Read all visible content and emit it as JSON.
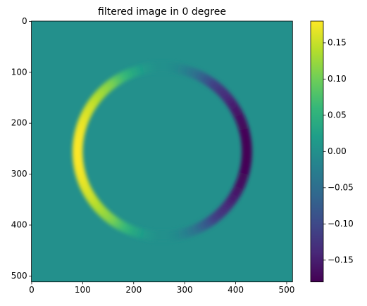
{
  "chart_data": {
    "type": "image",
    "title": "filtered image in 0 degree",
    "xlim": [
      -0.5,
      511.5
    ],
    "ylim": [
      511.5,
      -0.5
    ],
    "xticks": [
      0,
      100,
      200,
      300,
      400,
      500
    ],
    "yticks": [
      0,
      100,
      200,
      300,
      400,
      500
    ],
    "colormap": "viridis",
    "clim": [
      -0.18,
      0.18
    ],
    "colorbar_ticks": [
      {
        "value": -0.15,
        "label": "−0.15"
      },
      {
        "value": -0.1,
        "label": "−0.10"
      },
      {
        "value": -0.05,
        "label": "−0.05"
      },
      {
        "value": 0,
        "label": "0.00"
      },
      {
        "value": 0.05,
        "label": "0.05"
      },
      {
        "value": 0.1,
        "label": "0.10"
      },
      {
        "value": 0.15,
        "label": "0.15"
      }
    ]
  }
}
